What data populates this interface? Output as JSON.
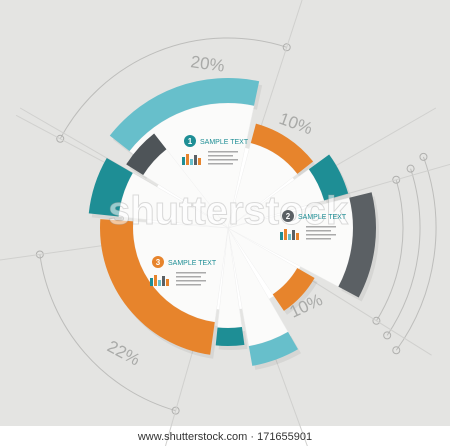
{
  "percent_labels": [
    "20%",
    "10%",
    "10%",
    "22%"
  ],
  "sections": [
    {
      "number": "1",
      "title": "SAMPLE TEXT"
    },
    {
      "number": "2",
      "title": "SAMPLE TEXT"
    },
    {
      "number": "3",
      "title": "SAMPLE TEXT"
    }
  ],
  "watermark": "shutterstock",
  "footer": {
    "site": "www.shutterstock.com",
    "separator": "·",
    "id": "171655901"
  }
}
